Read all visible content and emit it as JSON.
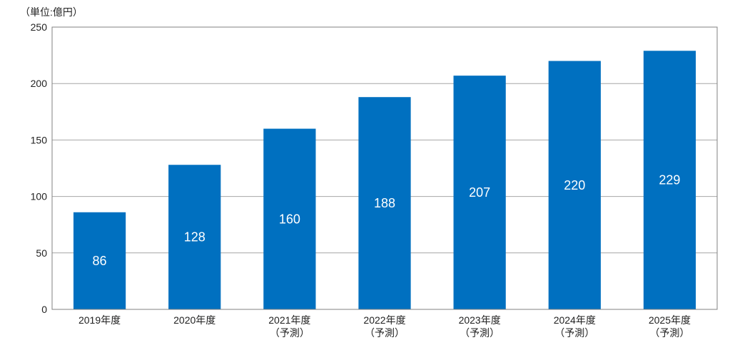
{
  "chart_data": {
    "type": "bar",
    "unit_label": "（単位:億円）",
    "categories": [
      [
        "2019年度"
      ],
      [
        "2020年度"
      ],
      [
        "2021年度",
        "（予測）"
      ],
      [
        "2022年度",
        "（予測）"
      ],
      [
        "2023年度",
        "（予測）"
      ],
      [
        "2024年度",
        "（予測）"
      ],
      [
        "2025年度",
        "（予測）"
      ]
    ],
    "values": [
      86,
      128,
      160,
      188,
      207,
      220,
      229
    ],
    "value_labels": [
      "86",
      "128",
      "160",
      "188",
      "207",
      "220",
      "229"
    ],
    "yticks": [
      0,
      50,
      100,
      150,
      200,
      250
    ],
    "ylim": [
      0,
      250
    ],
    "grid": true,
    "legend": "none",
    "bar_color": "#0070c0",
    "grid_color": "#a6a6a6",
    "axis_color": "#808080"
  }
}
